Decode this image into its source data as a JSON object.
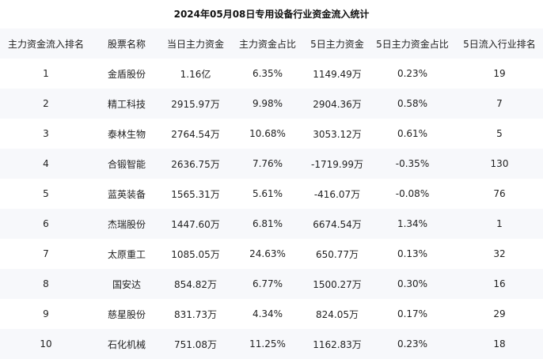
{
  "title": "2024年05月08日专用设备行业资金流入统计",
  "columns": [
    "主力资金流入排名",
    "股票名称",
    "当日主力资金",
    "主力资金占比",
    "5日主力资金",
    "5日主力资金占比",
    "5日流入行业排名"
  ],
  "rows": [
    [
      "1",
      "金盾股份",
      "1.16亿",
      "6.35%",
      "1149.49万",
      "0.23%",
      "19"
    ],
    [
      "2",
      "精工科技",
      "2915.97万",
      "9.98%",
      "2904.36万",
      "0.58%",
      "7"
    ],
    [
      "3",
      "泰林生物",
      "2764.54万",
      "10.68%",
      "3053.12万",
      "0.61%",
      "5"
    ],
    [
      "4",
      "合锻智能",
      "2636.75万",
      "7.76%",
      "-1719.99万",
      "-0.35%",
      "130"
    ],
    [
      "5",
      "蓝英装备",
      "1565.31万",
      "5.61%",
      "-416.07万",
      "-0.08%",
      "76"
    ],
    [
      "6",
      "杰瑞股份",
      "1447.60万",
      "6.81%",
      "6674.54万",
      "1.34%",
      "1"
    ],
    [
      "7",
      "太原重工",
      "1085.05万",
      "24.63%",
      "650.77万",
      "0.13%",
      "32"
    ],
    [
      "8",
      "国安达",
      "854.82万",
      "6.77%",
      "1500.27万",
      "0.30%",
      "16"
    ],
    [
      "9",
      "慈星股份",
      "831.73万",
      "4.34%",
      "824.05万",
      "0.17%",
      "29"
    ],
    [
      "10",
      "石化机械",
      "751.08万",
      "11.25%",
      "1162.83万",
      "0.23%",
      "18"
    ]
  ]
}
